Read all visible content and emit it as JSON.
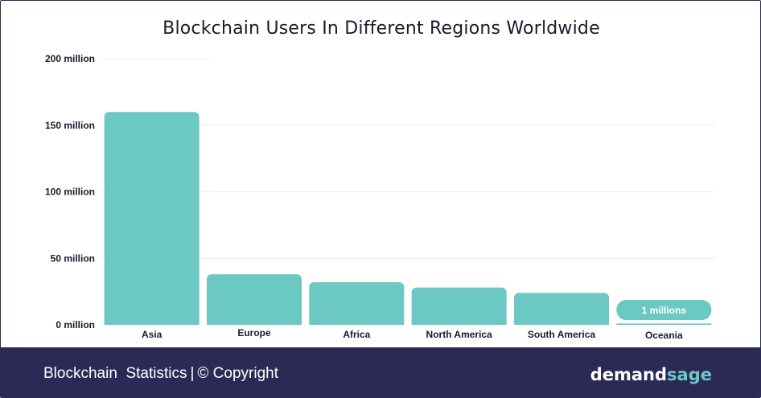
{
  "chart_data": {
    "type": "bar",
    "title": "Blockchain Users In Different Regions Worldwide",
    "categories": [
      "Asia",
      "Europe",
      "Africa",
      "North America",
      "South America",
      "Oceania"
    ],
    "values": [
      160,
      38,
      32,
      28,
      24,
      1
    ],
    "unit": "million",
    "ylim": [
      0,
      200
    ],
    "yticks": [
      0,
      50,
      100,
      150,
      200
    ],
    "ytick_labels": [
      "0 million",
      "50 million",
      "100 million",
      "150 million",
      "200 million"
    ],
    "data_labels": [
      {
        "category": "Oceania",
        "text": "1 millions"
      }
    ],
    "grid": true,
    "bar_color": "#6cc8c3"
  },
  "footer": {
    "left_text": "Blockchain  Statistics",
    "separator": "|",
    "copyright": "© Copyright",
    "logo_part1": "demand",
    "logo_part2": "sage",
    "background": "#2b2a57"
  }
}
